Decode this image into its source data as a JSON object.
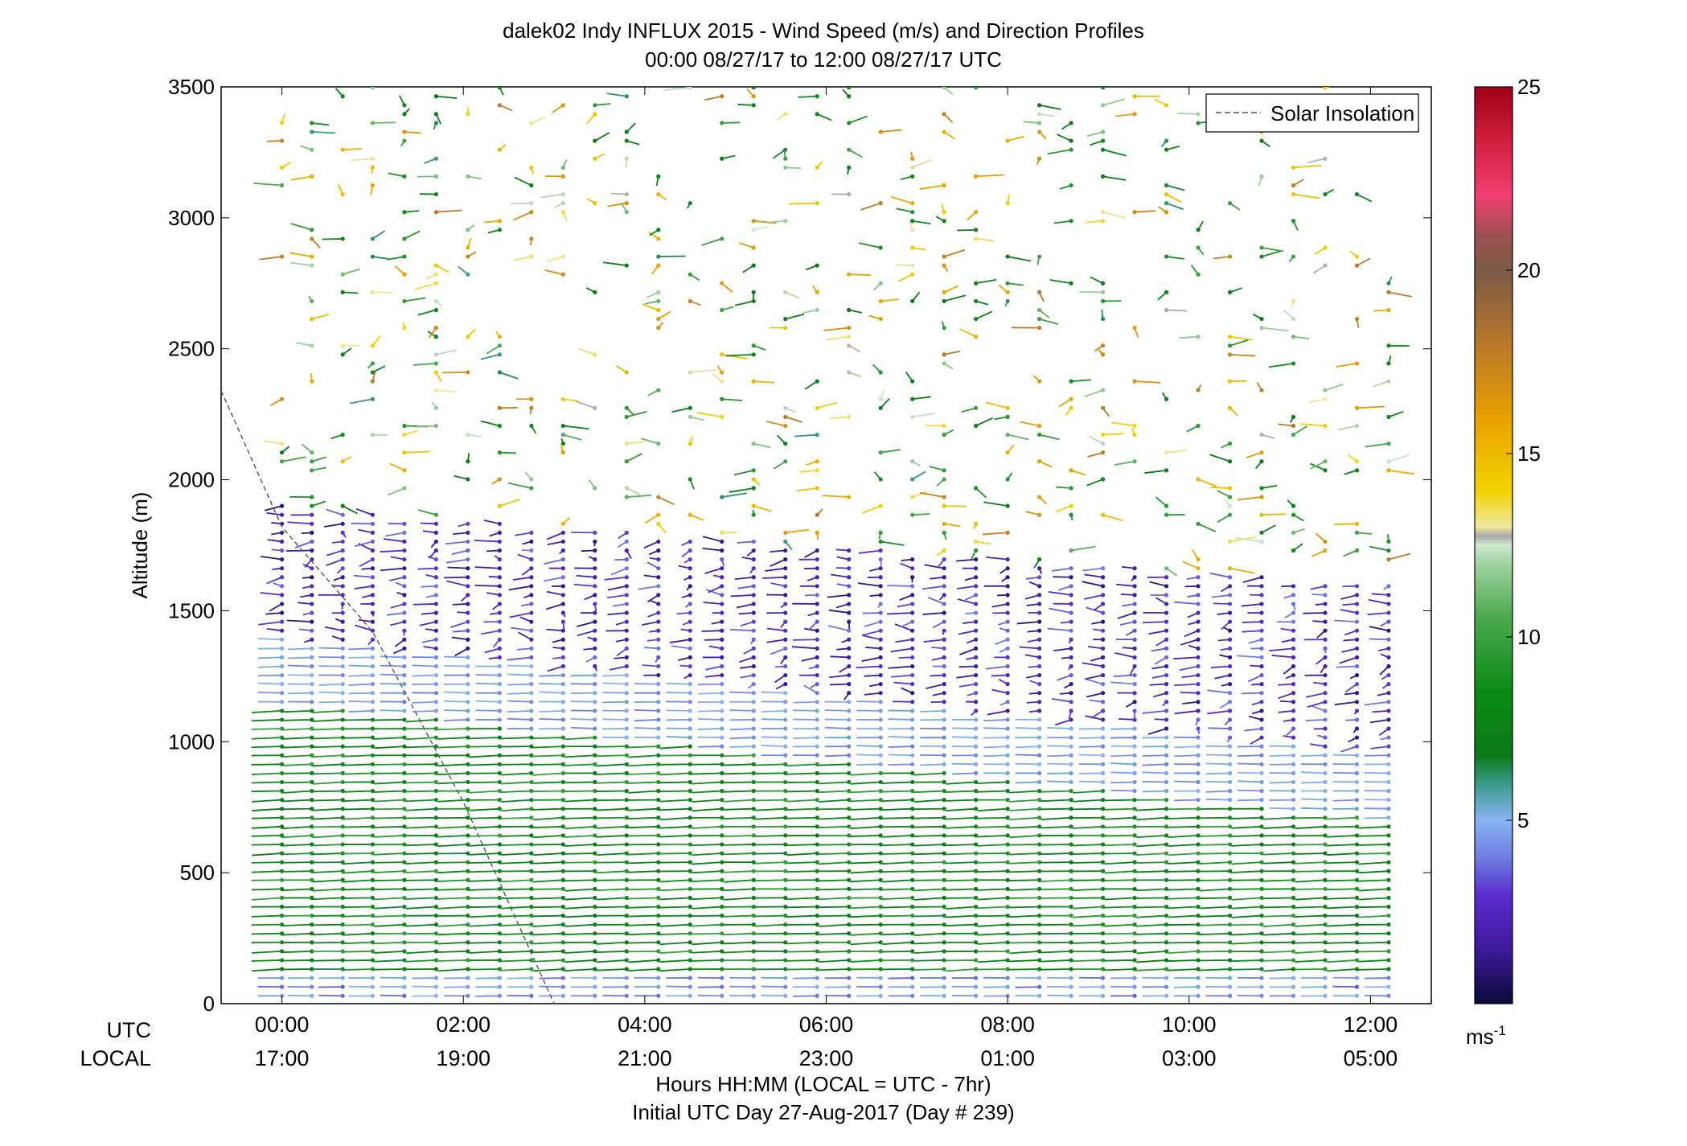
{
  "chart_data": {
    "type": "wind-barb-profile",
    "title": "dalek02 Indy INFLUX 2015 - Wind Speed (m/s) and Direction Profiles",
    "subtitle": "00:00 08/27/17 to 12:00 08/27/17  UTC",
    "ylabel": "Altitude (m)",
    "xlabel": "Hours HH:MM  (LOCAL = UTC - 7hr)",
    "xlabel2": "Initial UTC Day 27-Aug-2017 (Day # 239)",
    "row_label_utc": "UTC",
    "row_label_local": "LOCAL",
    "ylim": [
      0,
      3500
    ],
    "xlim_hours_utc": [
      -0.67,
      12.67
    ],
    "yticks": [
      0,
      500,
      1000,
      1500,
      2000,
      2500,
      3000,
      3500
    ],
    "xticks_utc": [
      "00:00",
      "02:00",
      "04:00",
      "06:00",
      "08:00",
      "10:00",
      "12:00"
    ],
    "xticks_local": [
      "17:00",
      "19:00",
      "21:00",
      "23:00",
      "01:00",
      "03:00",
      "05:00"
    ],
    "legend": {
      "entries": [
        "Solar Insolation"
      ],
      "placement": "top-right"
    },
    "colorbar": {
      "unit_base": "ms",
      "unit_exp": "-1",
      "range": [
        0,
        25
      ],
      "ticks": [
        5,
        10,
        15,
        20,
        25
      ],
      "stops": [
        [
          0.0,
          "#0a0a3a"
        ],
        [
          0.06,
          "#3d1a9c"
        ],
        [
          0.12,
          "#5a2fd0"
        ],
        [
          0.16,
          "#6e7fe0"
        ],
        [
          0.2,
          "#8ab4f4"
        ],
        [
          0.24,
          "#3b9a8c"
        ],
        [
          0.27,
          "#0c7a1a"
        ],
        [
          0.34,
          "#0a8a12"
        ],
        [
          0.42,
          "#4aa84e"
        ],
        [
          0.48,
          "#9fd39f"
        ],
        [
          0.5,
          "#cfe8cf"
        ],
        [
          0.51,
          "#a8a8a8"
        ],
        [
          0.52,
          "#f0e8a0"
        ],
        [
          0.56,
          "#f2d200"
        ],
        [
          0.64,
          "#e8a000"
        ],
        [
          0.72,
          "#b8782a"
        ],
        [
          0.8,
          "#7a5a48"
        ],
        [
          0.84,
          "#a05050"
        ],
        [
          0.88,
          "#f04070"
        ],
        [
          0.94,
          "#d02040"
        ],
        [
          1.0,
          "#a00018"
        ]
      ]
    },
    "solar_insolation_line": {
      "style": "dashed",
      "color": "#555555",
      "points_hours_altitude": [
        [
          -0.67,
          2340
        ],
        [
          0.0,
          1820
        ],
        [
          1.0,
          1420
        ],
        [
          2.0,
          770
        ],
        [
          3.0,
          0
        ]
      ]
    },
    "profile_times_hours_utc": [
      0.0,
      0.33,
      0.67,
      1.0,
      1.35,
      1.7,
      2.05,
      2.4,
      2.75,
      3.1,
      3.45,
      3.8,
      4.15,
      4.5,
      4.85,
      5.2,
      5.55,
      5.9,
      6.25,
      6.6,
      6.95,
      7.3,
      7.65,
      8.0,
      8.35,
      8.7,
      9.05,
      9.4,
      9.75,
      10.1,
      10.45,
      10.8,
      11.15,
      11.5,
      11.85,
      12.2
    ],
    "series": [
      {
        "altitude_range_m": [
          0,
          100
        ],
        "speed_ms": 5,
        "direction": "mixed, light blue near surface"
      },
      {
        "altitude_range_m": [
          100,
          1150
        ],
        "speed_ms": 8,
        "direction": "westward tails, green core; height of core decreasing with time"
      },
      {
        "altitude_range_m": [
          1150,
          1350
        ],
        "speed_ms": 5,
        "direction": "light blue transition"
      },
      {
        "altitude_range_m": [
          1350,
          1900
        ],
        "speed_ms": 2,
        "direction": "purple / dark, variable"
      },
      {
        "altitude_range_m": [
          1900,
          3500
        ],
        "speed_ms": 9,
        "direction": "scattered, mostly green, sparse"
      }
    ]
  }
}
